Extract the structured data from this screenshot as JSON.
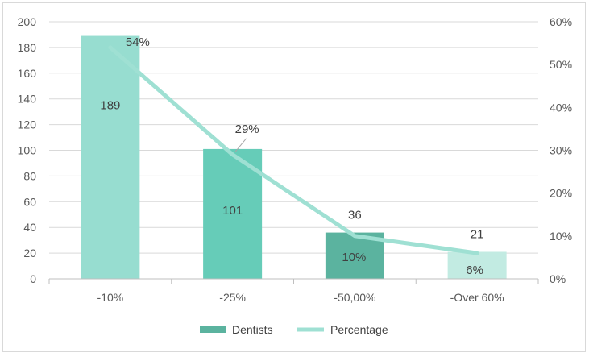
{
  "chart_data": {
    "type": "bar",
    "categories": [
      "-10%",
      "-25%",
      "-50,00%",
      "-Over 60%"
    ],
    "series": [
      {
        "name": "Dentists",
        "type": "bar",
        "axis": "left",
        "values": [
          189,
          101,
          36,
          21
        ],
        "labels": [
          "189",
          "101",
          "36",
          "21"
        ],
        "colors": [
          "#97ddd0",
          "#66ccb8",
          "#5bb39f",
          "#c2ebe2"
        ]
      },
      {
        "name": "Percentage",
        "type": "line",
        "axis": "right",
        "values": [
          54,
          29,
          10,
          6
        ],
        "labels": [
          "54%",
          "29%",
          "10%",
          "6%"
        ],
        "color": "#9fe0d3"
      }
    ],
    "y_left": {
      "min": 0,
      "max": 200,
      "step": 20,
      "ticks": [
        "0",
        "20",
        "40",
        "60",
        "80",
        "100",
        "120",
        "140",
        "160",
        "180",
        "200"
      ]
    },
    "y_right": {
      "min": 0,
      "max": 60,
      "step": 10,
      "ticks": [
        "0%",
        "10%",
        "20%",
        "30%",
        "40%",
        "50%",
        "60%"
      ]
    },
    "grid": true,
    "legend": "bottom",
    "legend_items": [
      {
        "label": "Dentists",
        "color": "#5bb39f",
        "shape": "rect"
      },
      {
        "label": "Percentage",
        "color": "#9fe0d3",
        "shape": "line"
      }
    ]
  }
}
